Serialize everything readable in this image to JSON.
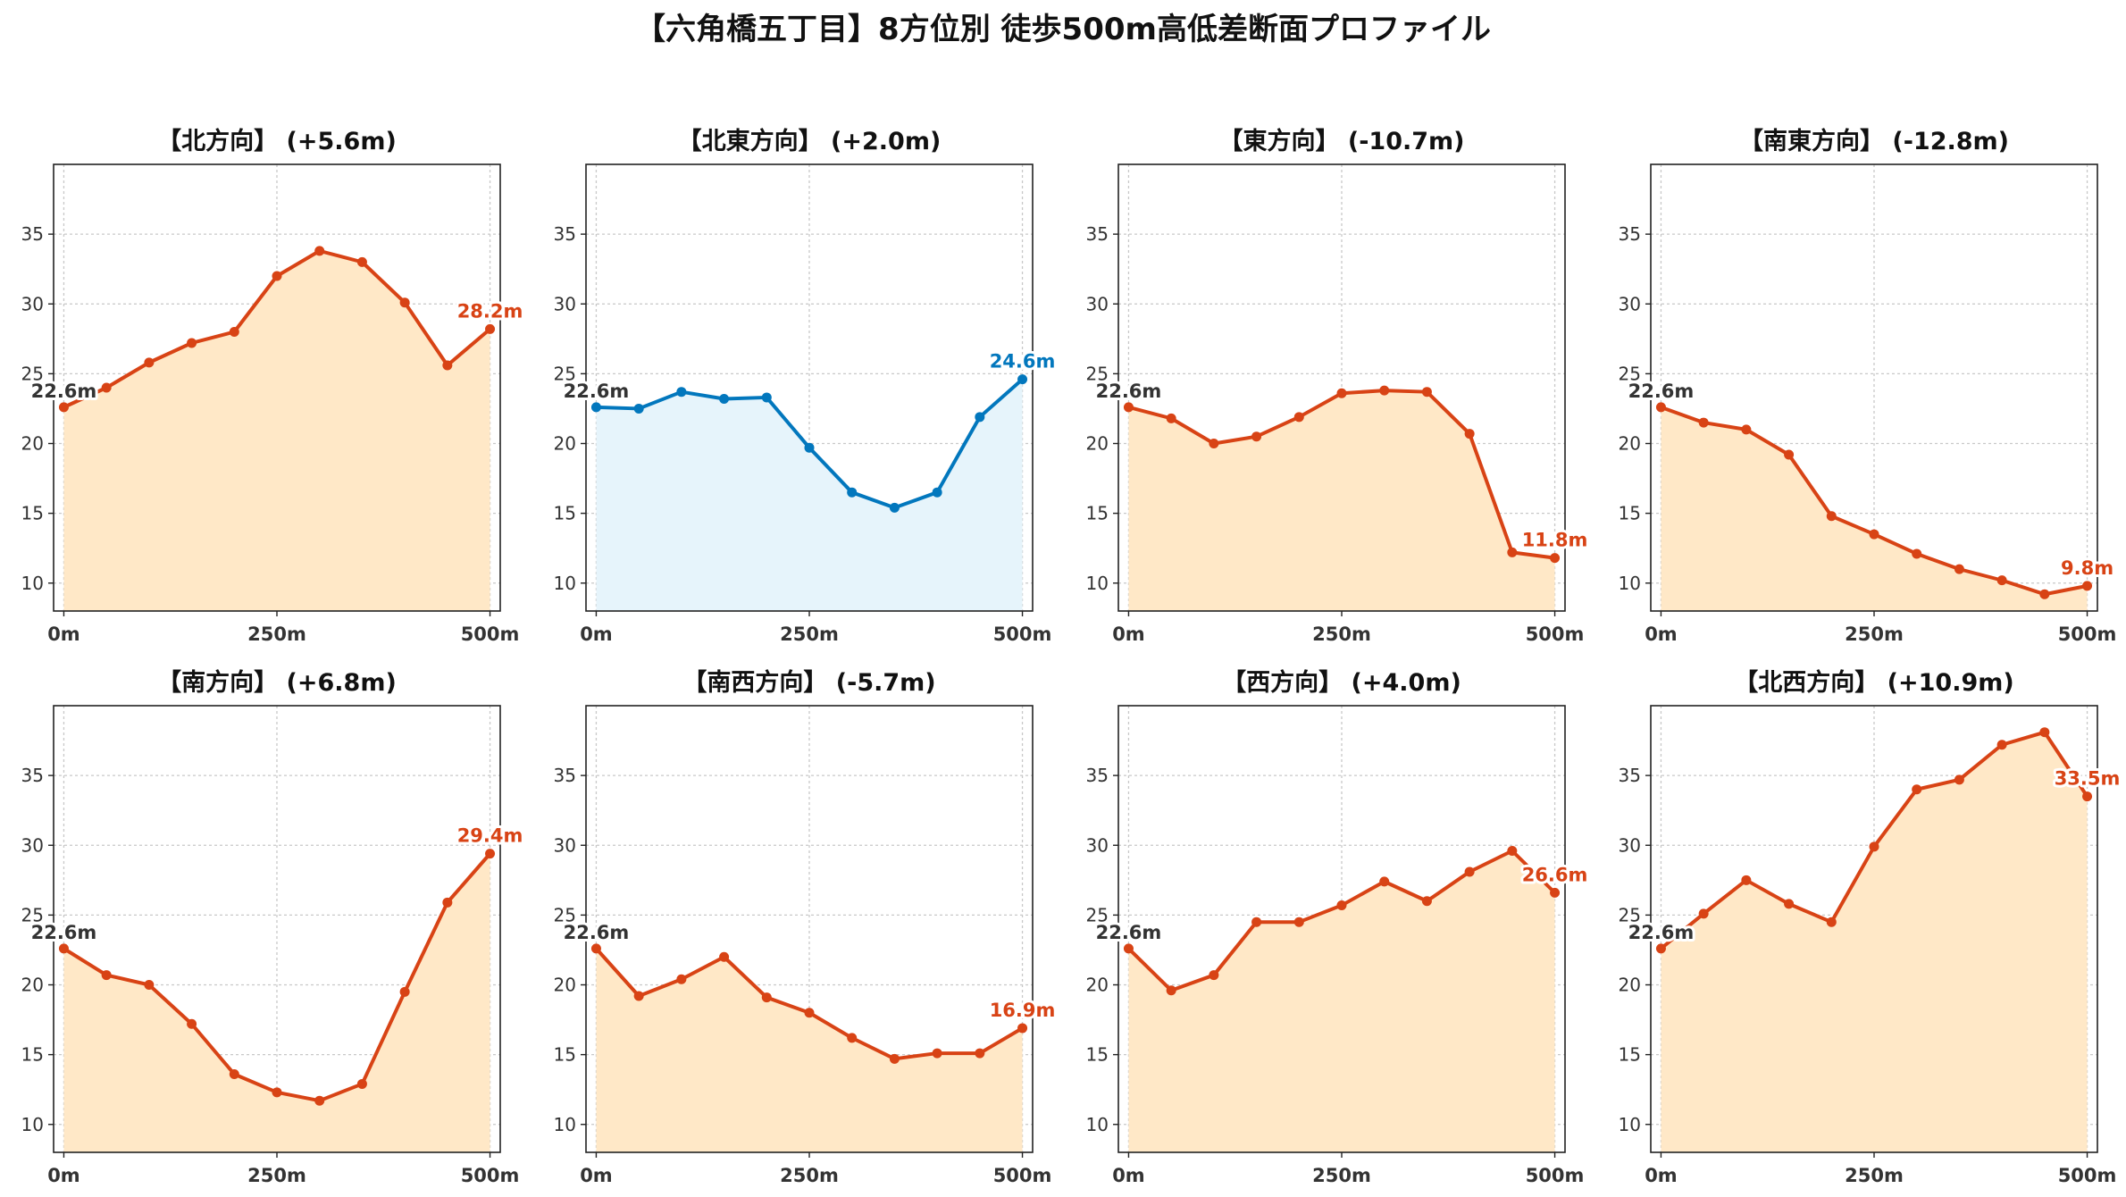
{
  "title": "【六角橋五丁目】8方位別 徒歩500m高低差断面プロファイル",
  "colors": {
    "up": "#d84315",
    "down": "#0277bd",
    "fill_up": "#ffe8c7",
    "fill_down": "#e6f4fb",
    "start_label": "#333333"
  },
  "chart_data": [
    {
      "type": "area",
      "title": "【北方向】 (+5.6m)",
      "trend": "up",
      "x": [
        0,
        50,
        100,
        150,
        200,
        250,
        300,
        350,
        400,
        450,
        500
      ],
      "y": [
        22.6,
        24.0,
        25.8,
        27.2,
        28.0,
        32.0,
        33.8,
        33.0,
        30.1,
        25.6,
        28.2
      ],
      "start_label": "22.6m",
      "end_label": "28.2m",
      "xticks": [
        "0m",
        "250m",
        "500m"
      ],
      "yticks": [
        10,
        15,
        20,
        25,
        30,
        35
      ],
      "ylim": [
        8,
        40
      ],
      "xlim": [
        -12,
        512
      ],
      "grid": true
    },
    {
      "type": "area",
      "title": "【北東方向】 (+2.0m)",
      "trend": "down",
      "x": [
        0,
        50,
        100,
        150,
        200,
        250,
        300,
        350,
        400,
        450,
        500
      ],
      "y": [
        22.6,
        22.5,
        23.7,
        23.2,
        23.3,
        19.7,
        16.5,
        15.4,
        16.5,
        21.9,
        24.6
      ],
      "start_label": "22.6m",
      "end_label": "24.6m",
      "xticks": [
        "0m",
        "250m",
        "500m"
      ],
      "yticks": [
        10,
        15,
        20,
        25,
        30,
        35
      ],
      "ylim": [
        8,
        40
      ],
      "xlim": [
        -12,
        512
      ],
      "grid": true
    },
    {
      "type": "area",
      "title": "【東方向】 (-10.7m)",
      "trend": "up",
      "x": [
        0,
        50,
        100,
        150,
        200,
        250,
        300,
        350,
        400,
        450,
        500
      ],
      "y": [
        22.6,
        21.8,
        20.0,
        20.5,
        21.9,
        23.6,
        23.8,
        23.7,
        20.7,
        12.2,
        11.8
      ],
      "start_label": "22.6m",
      "end_label": "11.8m",
      "xticks": [
        "0m",
        "250m",
        "500m"
      ],
      "yticks": [
        10,
        15,
        20,
        25,
        30,
        35
      ],
      "ylim": [
        8,
        40
      ],
      "xlim": [
        -12,
        512
      ],
      "grid": true
    },
    {
      "type": "area",
      "title": "【南東方向】 (-12.8m)",
      "trend": "up",
      "x": [
        0,
        50,
        100,
        150,
        200,
        250,
        300,
        350,
        400,
        450,
        500
      ],
      "y": [
        22.6,
        21.5,
        21.0,
        19.2,
        14.8,
        13.5,
        12.1,
        11.0,
        10.2,
        9.2,
        9.8
      ],
      "start_label": "22.6m",
      "end_label": "9.8m",
      "xticks": [
        "0m",
        "250m",
        "500m"
      ],
      "yticks": [
        10,
        15,
        20,
        25,
        30,
        35
      ],
      "ylim": [
        8,
        40
      ],
      "xlim": [
        -12,
        512
      ],
      "grid": true
    },
    {
      "type": "area",
      "title": "【南方向】 (+6.8m)",
      "trend": "up",
      "x": [
        0,
        50,
        100,
        150,
        200,
        250,
        300,
        350,
        400,
        450,
        500
      ],
      "y": [
        22.6,
        20.7,
        20.0,
        17.2,
        13.6,
        12.3,
        11.7,
        12.9,
        19.5,
        25.9,
        29.4
      ],
      "start_label": "22.6m",
      "end_label": "29.4m",
      "xticks": [
        "0m",
        "250m",
        "500m"
      ],
      "yticks": [
        10,
        15,
        20,
        25,
        30,
        35
      ],
      "ylim": [
        8,
        40
      ],
      "xlim": [
        -12,
        512
      ],
      "grid": true
    },
    {
      "type": "area",
      "title": "【南西方向】 (-5.7m)",
      "trend": "up",
      "x": [
        0,
        50,
        100,
        150,
        200,
        250,
        300,
        350,
        400,
        450,
        500
      ],
      "y": [
        22.6,
        19.2,
        20.4,
        22.0,
        19.1,
        18.0,
        16.2,
        14.7,
        15.1,
        15.1,
        16.9
      ],
      "start_label": "22.6m",
      "end_label": "16.9m",
      "xticks": [
        "0m",
        "250m",
        "500m"
      ],
      "yticks": [
        10,
        15,
        20,
        25,
        30,
        35
      ],
      "ylim": [
        8,
        40
      ],
      "xlim": [
        -12,
        512
      ],
      "grid": true
    },
    {
      "type": "area",
      "title": "【西方向】 (+4.0m)",
      "trend": "up",
      "x": [
        0,
        50,
        100,
        150,
        200,
        250,
        300,
        350,
        400,
        450,
        500
      ],
      "y": [
        22.6,
        19.6,
        20.7,
        24.5,
        24.5,
        25.7,
        27.4,
        26.0,
        28.1,
        29.6,
        26.6
      ],
      "start_label": "22.6m",
      "end_label": "26.6m",
      "xticks": [
        "0m",
        "250m",
        "500m"
      ],
      "yticks": [
        10,
        15,
        20,
        25,
        30,
        35
      ],
      "ylim": [
        8,
        40
      ],
      "xlim": [
        -12,
        512
      ],
      "grid": true
    },
    {
      "type": "area",
      "title": "【北西方向】 (+10.9m)",
      "trend": "up",
      "x": [
        0,
        50,
        100,
        150,
        200,
        250,
        300,
        350,
        400,
        450,
        500
      ],
      "y": [
        22.6,
        25.1,
        27.5,
        25.8,
        24.5,
        29.9,
        34.0,
        34.7,
        37.2,
        38.1,
        33.5
      ],
      "start_label": "22.6m",
      "end_label": "33.5m",
      "xticks": [
        "0m",
        "250m",
        "500m"
      ],
      "yticks": [
        10,
        15,
        20,
        25,
        30,
        35
      ],
      "ylim": [
        8,
        40
      ],
      "xlim": [
        -12,
        512
      ],
      "grid": true
    }
  ]
}
